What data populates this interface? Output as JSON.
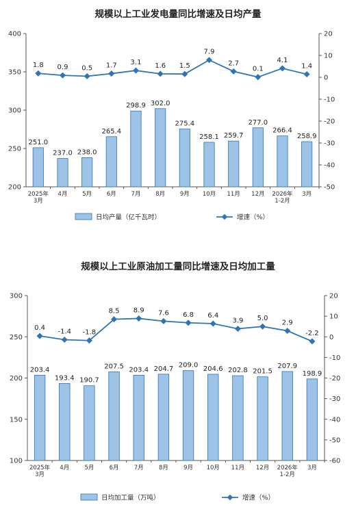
{
  "chart_data": [
    {
      "type": "bar",
      "title": "规模以上工业发电量同比增速及日均产量",
      "categories": [
        "2025年\n3月",
        "4月",
        "5月",
        "6月",
        "7月",
        "8月",
        "9月",
        "10月",
        "11月",
        "12月",
        "2026年\n1-2月",
        "3月"
      ],
      "series": [
        {
          "name": "日均产量（亿千瓦时）",
          "type": "bar",
          "axis": "left",
          "values": [
            251.0,
            237.0,
            238.0,
            265.4,
            298.9,
            302.0,
            275.4,
            258.1,
            259.7,
            277.0,
            266.4,
            258.9
          ],
          "labels": [
            "251.0",
            "237.0",
            "238.0",
            "265.4",
            "298.9",
            "302.0",
            "275.4",
            "258.1",
            "259.7",
            "277.0",
            "266.4",
            "258.9"
          ]
        },
        {
          "name": "增速（%）",
          "type": "line",
          "axis": "right",
          "values": [
            1.8,
            0.9,
            0.5,
            1.7,
            3.1,
            1.6,
            1.5,
            7.9,
            2.7,
            0.1,
            4.1,
            1.4
          ],
          "labels": [
            "1.8",
            "0.9",
            "0.5",
            "1.7",
            "3.1",
            "1.6",
            "1.5",
            "7.9",
            "2.7",
            "0.1",
            "4.1",
            "1.4"
          ]
        }
      ],
      "y_left": {
        "min": 200,
        "max": 400,
        "ticks": [
          "200",
          "250",
          "300",
          "350",
          "400"
        ]
      },
      "y_right": {
        "min": -50,
        "max": 20,
        "ticks": [
          "-50",
          "-40",
          "-30",
          "-20",
          "-10",
          "0",
          "10",
          "20"
        ]
      },
      "legend_position": "bottom",
      "colors": {
        "bar_fill": "#9dc3e6",
        "bar_stroke": "#2e75b6",
        "line": "#2e75b6"
      }
    },
    {
      "type": "bar",
      "title": "规模以上工业原油加工量同比增速及日均加工量",
      "categories": [
        "2025年\n3月",
        "4月",
        "5月",
        "6月",
        "7月",
        "8月",
        "9月",
        "10月",
        "11月",
        "12月",
        "2026年\n1-2月",
        "3月"
      ],
      "series": [
        {
          "name": "日均加工量（万吨）",
          "type": "bar",
          "axis": "left",
          "values": [
            203.4,
            193.4,
            190.7,
            207.5,
            203.4,
            204.7,
            209.0,
            204.6,
            202.8,
            201.5,
            207.9,
            198.9
          ],
          "labels": [
            "203.4",
            "193.4",
            "190.7",
            "207.5",
            "203.4",
            "204.7",
            "209.0",
            "204.6",
            "202.8",
            "201.5",
            "207.9",
            "198.9"
          ]
        },
        {
          "name": "增速（%）",
          "type": "line",
          "axis": "right",
          "values": [
            0.4,
            -1.4,
            -1.8,
            8.5,
            8.9,
            7.6,
            6.8,
            6.4,
            3.9,
            5.0,
            2.9,
            -2.2
          ],
          "labels": [
            "0.4",
            "-1.4",
            "-1.8",
            "8.5",
            "8.9",
            "7.6",
            "6.8",
            "6.4",
            "3.9",
            "5.0",
            "2.9",
            "-2.2"
          ]
        }
      ],
      "y_left": {
        "min": 100,
        "max": 300,
        "ticks": [
          "100",
          "150",
          "200",
          "250",
          "300"
        ]
      },
      "y_right": {
        "min": -60,
        "max": 20,
        "ticks": [
          "-60",
          "-50",
          "-40",
          "-30",
          "-20",
          "-10",
          "0",
          "10",
          "20"
        ]
      },
      "legend_position": "bottom",
      "colors": {
        "bar_fill": "#9dc3e6",
        "bar_stroke": "#2e75b6",
        "line": "#2e75b6"
      }
    }
  ]
}
